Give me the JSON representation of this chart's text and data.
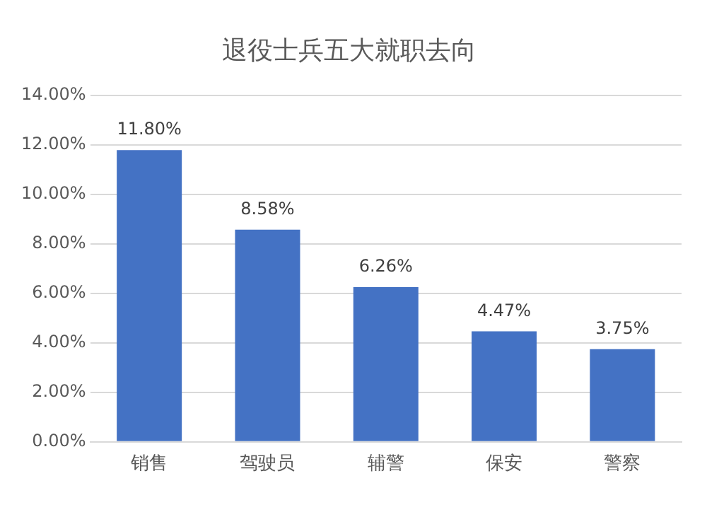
{
  "chart_data": {
    "type": "bar",
    "title": "退役士兵五大就职去向",
    "categories": [
      "销售",
      "驾驶员",
      "辅警",
      "保安",
      "警察"
    ],
    "values": [
      11.8,
      8.58,
      6.26,
      4.47,
      3.75
    ],
    "value_labels": [
      "11.80%",
      "8.58%",
      "6.26%",
      "4.47%",
      "3.75%"
    ],
    "color": "#4472c4",
    "ylim": [
      0,
      14
    ],
    "yticks": [
      {
        "value": 0,
        "label": "0.00%"
      },
      {
        "value": 2,
        "label": "2.00%"
      },
      {
        "value": 4,
        "label": "4.00%"
      },
      {
        "value": 6,
        "label": "6.00%"
      },
      {
        "value": 8,
        "label": "8.00%"
      },
      {
        "value": 10,
        "label": "10.00%"
      },
      {
        "value": 12,
        "label": "12.00%"
      },
      {
        "value": 14,
        "label": "14.00%"
      }
    ],
    "grid": "y",
    "legend": false
  }
}
